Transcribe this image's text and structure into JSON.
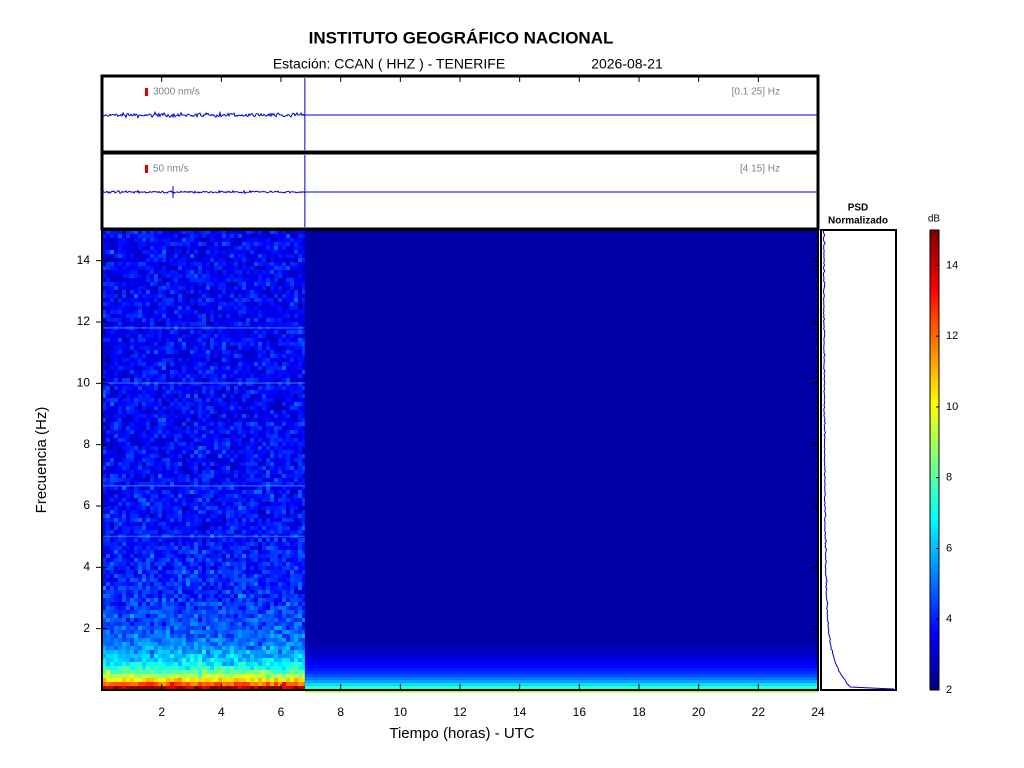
{
  "header": {
    "title": "INSTITUTO GEOGRÁFICO NACIONAL",
    "station": "Estación:  CCAN ( HHZ ) - TENERIFE",
    "date": "2026-08-21"
  },
  "chart_data": [
    {
      "type": "trace",
      "scale_label": "3000 nm/s",
      "band_label": "[0.1 25] Hz",
      "color": "#0000cc"
    },
    {
      "type": "trace",
      "scale_label": "50 nm/s",
      "band_label": "[4 15] Hz",
      "color": "#0000cc"
    },
    {
      "type": "spectrogram",
      "xlabel": "Tiempo (horas) - UTC",
      "ylabel": "Frecuencia  (Hz)",
      "xlim": [
        0,
        24
      ],
      "xticks": [
        2,
        4,
        6,
        8,
        10,
        12,
        14,
        16,
        18,
        20,
        22,
        24
      ],
      "ylim": [
        0,
        15
      ],
      "yticks": [
        2,
        4,
        6,
        8,
        10,
        12,
        14
      ],
      "recording_end": 6.8,
      "colormap": "jet"
    },
    {
      "type": "psd",
      "title": [
        "PSD",
        "Normalizado"
      ],
      "color": "#0000cc"
    },
    {
      "type": "colorbar",
      "label": "dB",
      "zlim": [
        2,
        15
      ],
      "zticks": [
        2,
        4,
        6,
        8,
        10,
        12,
        14
      ]
    }
  ]
}
